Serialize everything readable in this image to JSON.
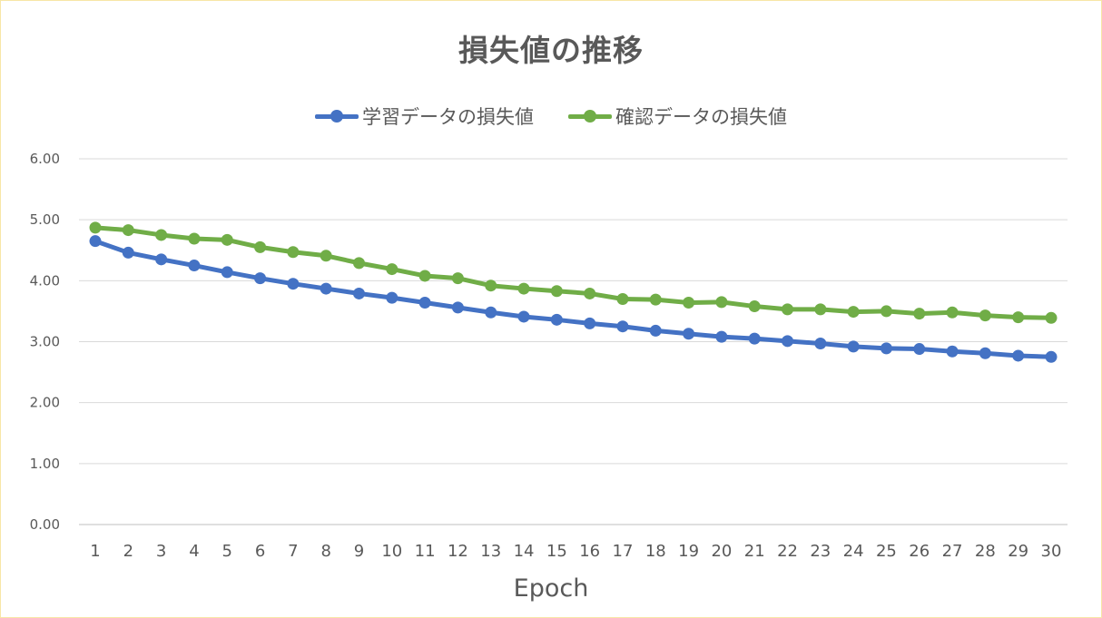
{
  "chart_data": {
    "type": "line",
    "title": "損失値の推移",
    "xlabel": "Epoch",
    "ylabel": "",
    "x": [
      1,
      2,
      3,
      4,
      5,
      6,
      7,
      8,
      9,
      10,
      11,
      12,
      13,
      14,
      15,
      16,
      17,
      18,
      19,
      20,
      21,
      22,
      23,
      24,
      25,
      26,
      27,
      28,
      29,
      30
    ],
    "ylim": [
      0,
      6
    ],
    "yticks": [
      "0.00",
      "1.00",
      "2.00",
      "3.00",
      "4.00",
      "5.00",
      "6.00"
    ],
    "grid": true,
    "legend_position": "top",
    "series": [
      {
        "name": "学習データの損失値",
        "color": "#4472c4",
        "values": [
          4.65,
          4.46,
          4.35,
          4.25,
          4.14,
          4.04,
          3.95,
          3.87,
          3.79,
          3.72,
          3.64,
          3.56,
          3.48,
          3.41,
          3.36,
          3.3,
          3.25,
          3.18,
          3.13,
          3.08,
          3.05,
          3.01,
          2.97,
          2.92,
          2.89,
          2.88,
          2.84,
          2.81,
          2.77,
          2.75
        ]
      },
      {
        "name": "確認データの損失値",
        "color": "#70ad47",
        "values": [
          4.87,
          4.83,
          4.75,
          4.69,
          4.67,
          4.55,
          4.47,
          4.41,
          4.29,
          4.19,
          4.08,
          4.04,
          3.92,
          3.87,
          3.83,
          3.79,
          3.7,
          3.69,
          3.64,
          3.65,
          3.58,
          3.53,
          3.53,
          3.49,
          3.5,
          3.46,
          3.48,
          3.43,
          3.4,
          3.39
        ]
      }
    ]
  }
}
